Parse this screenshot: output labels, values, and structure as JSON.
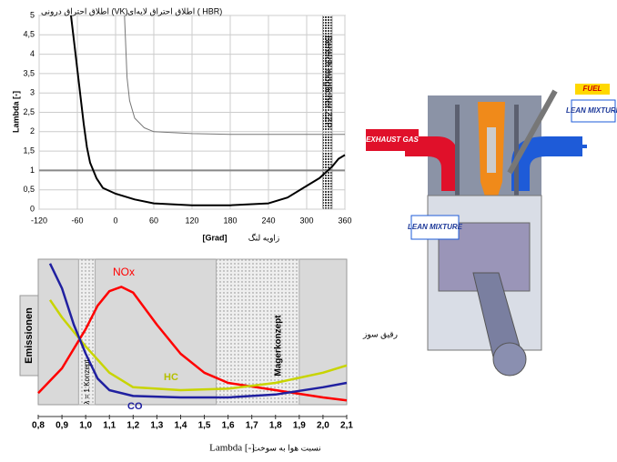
{
  "chart_data": [
    {
      "type": "line",
      "y_label": "Lambda [-]",
      "x_label": "[Grad]",
      "x_label_fa": "زاویه لنگ",
      "region_label": "Bereich möglicher ZZP",
      "xlim": [
        -120,
        360
      ],
      "xticks": [
        -120,
        -60,
        0,
        60,
        120,
        180,
        240,
        300,
        360
      ],
      "ylim": [
        0,
        5
      ],
      "yticks": [
        0,
        {
          "value": 0.5,
          "label": "0,5"
        },
        1,
        {
          "value": 1.5,
          "label": "1,5"
        },
        2,
        {
          "value": 2.5,
          "label": "2,5"
        },
        3,
        {
          "value": 3.5,
          "label": "3,5"
        },
        4,
        {
          "value": 4.5,
          "label": "4,5"
        },
        5
      ],
      "grid": true,
      "reference_line": 1,
      "bands": [
        [
          325,
          340
        ]
      ],
      "series": [
        {
          "name": "اطلاق احتراق درونی (VK)",
          "color": "#000000",
          "x": [
            -70,
            -65,
            -60,
            -55,
            -50,
            -45,
            -40,
            -30,
            -20,
            0,
            30,
            60,
            120,
            180,
            240,
            270,
            300,
            320,
            340,
            350,
            360
          ],
          "values": [
            5,
            4.3,
            3.6,
            2.9,
            2.2,
            1.6,
            1.2,
            0.8,
            0.55,
            0.4,
            0.25,
            0.15,
            0.1,
            0.1,
            0.15,
            0.3,
            0.6,
            0.8,
            1.1,
            1.3,
            1.4
          ]
        },
        {
          "name": "اطلاق احتراق لایه‌ای ( HBR)",
          "color": "#777777",
          "x": [
            14,
            18,
            22,
            30,
            45,
            60,
            120,
            180,
            360
          ],
          "values": [
            5,
            3.4,
            2.8,
            2.35,
            2.1,
            2.0,
            1.95,
            1.93,
            1.93
          ]
        }
      ]
    },
    {
      "type": "line",
      "y_label": "Emissionen",
      "x_label": "Lambda [-]",
      "x_label_fa": "نسبت هوا به سوخت",
      "annotations": [
        "λ = 1 Konzept",
        "Magerkonzept",
        "رقیق سوز"
      ],
      "xlim": [
        0.8,
        2.1
      ],
      "xticks": [
        {
          "value": 0.8,
          "label": "0,8"
        },
        {
          "value": 0.9,
          "label": "0,9"
        },
        {
          "value": 1.0,
          "label": "1,0"
        },
        {
          "value": 1.1,
          "label": "1,1"
        },
        {
          "value": 1.2,
          "label": "1,2"
        },
        {
          "value": 1.3,
          "label": "1,3"
        },
        {
          "value": 1.4,
          "label": "1,4"
        },
        {
          "value": 1.5,
          "label": "1,5"
        },
        {
          "value": 1.6,
          "label": "1,6"
        },
        {
          "value": 1.7,
          "label": "1,7"
        },
        {
          "value": 1.8,
          "label": "1,8"
        },
        {
          "value": 1.9,
          "label": "1,9"
        },
        {
          "value": 2.0,
          "label": "2,0"
        },
        {
          "value": 2.1,
          "label": "2,1"
        }
      ],
      "ylim": [
        0,
        100
      ],
      "grid": false,
      "bands": [
        [
          0.97,
          1.04
        ],
        [
          1.55,
          1.9
        ]
      ],
      "series": [
        {
          "name": "NOx",
          "color": "#ff0000",
          "x": [
            0.8,
            0.9,
            1.0,
            1.05,
            1.1,
            1.15,
            1.2,
            1.3,
            1.4,
            1.5,
            1.6,
            1.8,
            2.0,
            2.1
          ],
          "values": [
            8,
            25,
            52,
            68,
            78,
            81,
            77,
            55,
            35,
            22,
            15,
            10,
            5,
            3
          ]
        },
        {
          "name": "HC",
          "color": "#c8d400",
          "x": [
            0.85,
            0.9,
            1.0,
            1.1,
            1.2,
            1.4,
            1.6,
            1.8,
            2.0,
            2.1
          ],
          "values": [
            72,
            60,
            40,
            22,
            12,
            10,
            11,
            15,
            22,
            27
          ]
        },
        {
          "name": "CO",
          "color": "#2020a0",
          "x": [
            0.85,
            0.9,
            0.95,
            1.0,
            1.05,
            1.1,
            1.2,
            1.4,
            1.6,
            1.8,
            2.0,
            2.1
          ],
          "values": [
            97,
            80,
            55,
            35,
            18,
            10,
            6,
            5,
            5,
            7,
            12,
            15
          ]
        }
      ]
    }
  ],
  "diagram": {
    "exhaust": "EXHAUST GAS",
    "fuel": "FUEL",
    "lean_right": "LEAN MIXTURE",
    "lean_left": "LEAN MIXTURE"
  }
}
